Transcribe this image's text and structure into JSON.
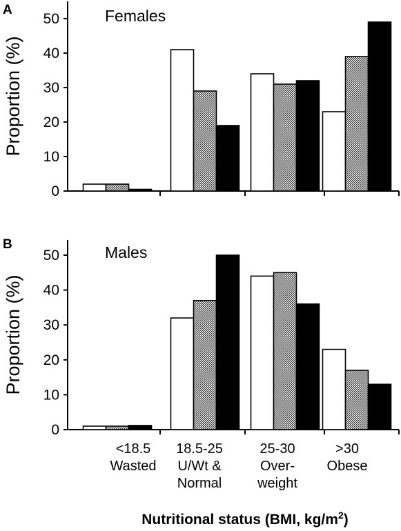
{
  "chart_data": [
    {
      "type": "bar",
      "panel_label": "A",
      "title": "Females",
      "ylabel": "Proportion (%)",
      "ylim": [
        0,
        55
      ],
      "yticks": [
        0,
        10,
        20,
        30,
        40,
        50
      ],
      "categories": [
        [
          "<18.5",
          "Wasted"
        ],
        [
          "18.5-25",
          "U/Wt &",
          "Normal"
        ],
        [
          "25-30",
          "Over-",
          "weight"
        ],
        [
          ">30",
          "Obese"
        ]
      ],
      "series": [
        {
          "fill": "white",
          "color": "#ffffff",
          "values": [
            2,
            41,
            34,
            23
          ]
        },
        {
          "fill": "gray-pattern",
          "color": "#a8a8a8",
          "values": [
            2,
            29,
            31,
            39
          ]
        },
        {
          "fill": "black",
          "color": "#000000",
          "values": [
            0.5,
            19,
            32,
            49
          ]
        }
      ],
      "grid": false
    },
    {
      "type": "bar",
      "panel_label": "B",
      "title": "Males",
      "ylabel": "Proportion (%)",
      "ylim": [
        0,
        55
      ],
      "yticks": [
        0,
        10,
        20,
        30,
        40,
        50
      ],
      "categories": [
        [
          "<18.5",
          "Wasted"
        ],
        [
          "18.5-25",
          "U/Wt &",
          "Normal"
        ],
        [
          "25-30",
          "Over-",
          "weight"
        ],
        [
          ">30",
          "Obese"
        ]
      ],
      "series": [
        {
          "fill": "white",
          "color": "#ffffff",
          "values": [
            1,
            32,
            44,
            23
          ]
        },
        {
          "fill": "gray-pattern",
          "color": "#a8a8a8",
          "values": [
            1,
            37,
            45,
            17
          ]
        },
        {
          "fill": "black",
          "color": "#000000",
          "values": [
            1.2,
            50,
            36,
            13
          ]
        }
      ],
      "grid": false
    }
  ],
  "xlabel": {
    "main": "Nutritional status (BMI, kg/m",
    "sup": "2",
    "close": ")"
  }
}
